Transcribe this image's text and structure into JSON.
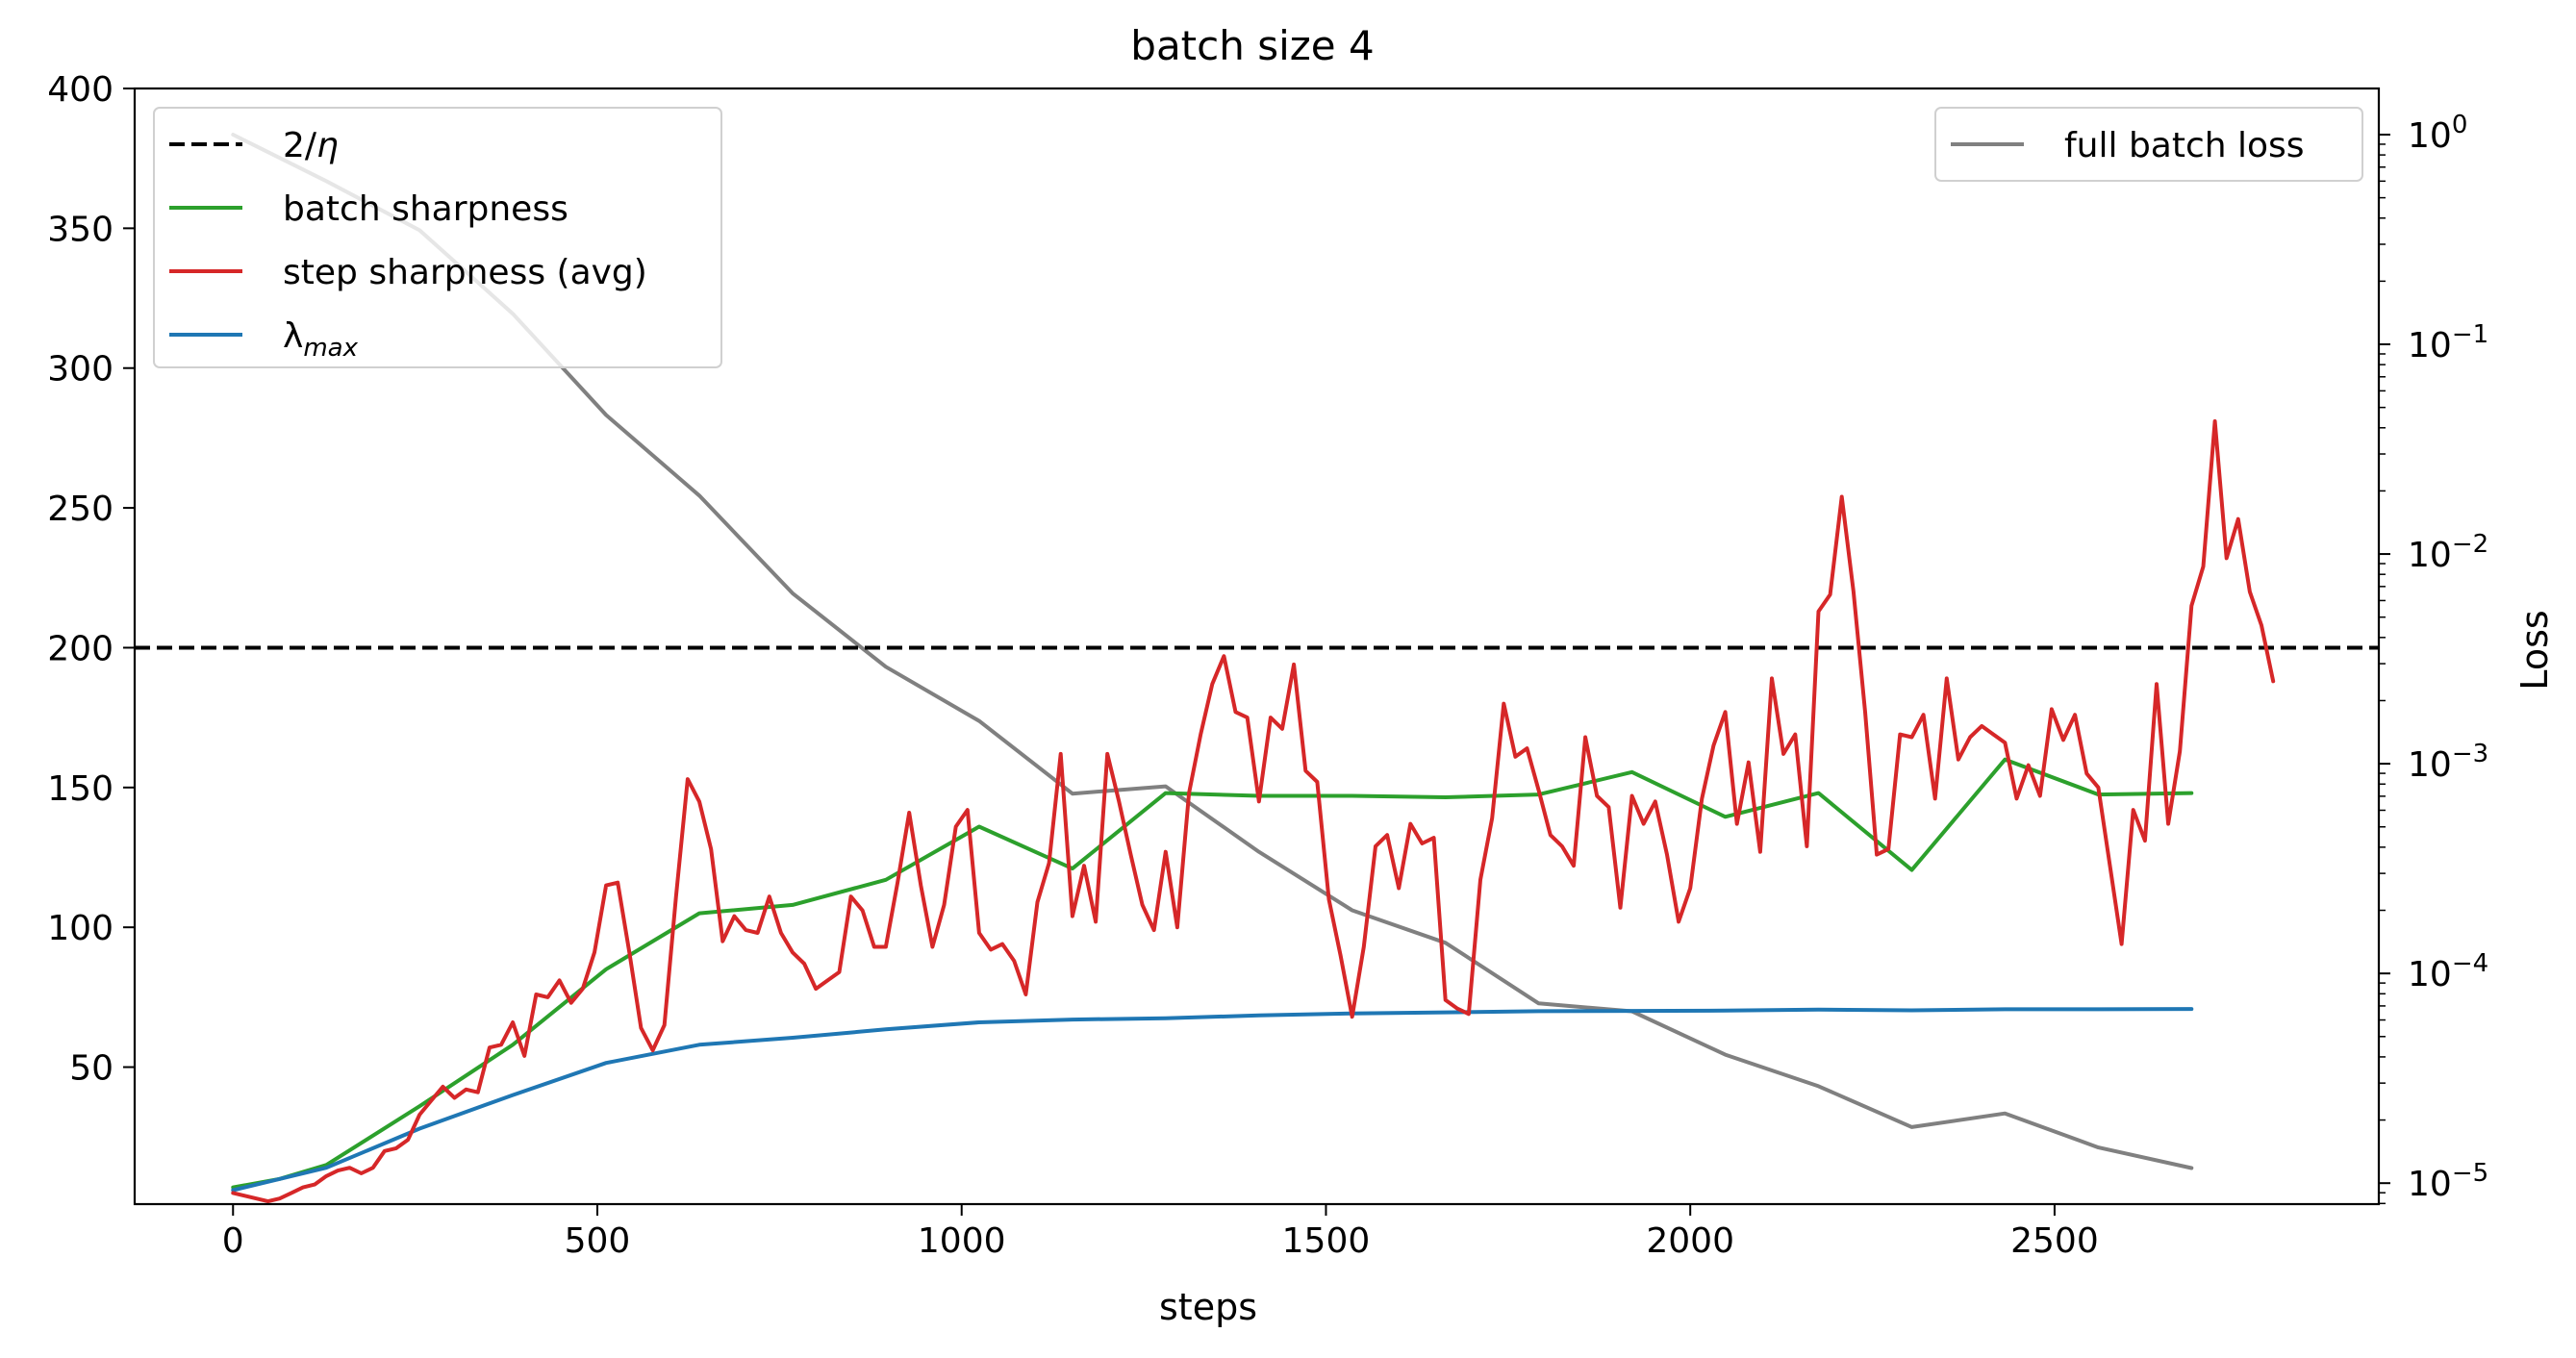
{
  "chart_data": {
    "type": "line",
    "title": "batch size 4",
    "xlabel": "steps",
    "ylabel": "",
    "ylabel_right": "Loss",
    "xlim": [
      -135,
      2945
    ],
    "ylim": [
      1,
      400
    ],
    "y2_scale": "log",
    "y2_exponent_range": [
      -5.1,
      0.22
    ],
    "grid": false,
    "x_ticks": [
      0,
      500,
      1000,
      1500,
      2000,
      2500
    ],
    "y_ticks": [
      50,
      100,
      150,
      200,
      250,
      300,
      350,
      400
    ],
    "y2_ticks": [
      {
        "base": "10",
        "exp": "0",
        "value": 1
      },
      {
        "base": "10",
        "exp": "−1",
        "value": 0.1
      },
      {
        "base": "10",
        "exp": "−2",
        "value": 0.01
      },
      {
        "base": "10",
        "exp": "−3",
        "value": 0.001
      },
      {
        "base": "10",
        "exp": "−4",
        "value": 0.0001
      },
      {
        "base": "10",
        "exp": "−5",
        "value": 1e-05
      }
    ],
    "legend_left": {
      "placement": "upper-left",
      "entries": [
        {
          "label": "2/",
          "label_italic": "η",
          "series": "two_over_eta"
        },
        {
          "label": "batch sharpness",
          "series": "batch_sharpness"
        },
        {
          "label": "step sharpness (avg)",
          "series": "step_sharpness"
        },
        {
          "label": "λ",
          "label_sub": "max",
          "series": "lambda_max"
        }
      ]
    },
    "legend_right": {
      "placement": "upper-right",
      "entries": [
        {
          "label": "full batch loss",
          "series": "full_batch_loss"
        }
      ]
    },
    "colors": {
      "two_over_eta": "#000000",
      "batch_sharpness": "#2ca02c",
      "step_sharpness": "#d62728",
      "lambda_max": "#1f77b4",
      "full_batch_loss": "#808080"
    },
    "series": [
      {
        "key": "two_over_eta",
        "axis": "left",
        "style": "dashed",
        "x": [
          -135,
          2945
        ],
        "y": [
          200,
          200
        ]
      },
      {
        "key": "batch_sharpness",
        "axis": "left",
        "x": [
          0,
          64,
          128,
          256,
          384,
          512,
          640,
          768,
          896,
          1024,
          1152,
          1280,
          1408,
          1536,
          1664,
          1792,
          1920,
          2048,
          2176,
          2304,
          2432,
          2560,
          2688
        ],
        "y": [
          7,
          10,
          15,
          36,
          58,
          85,
          105,
          108,
          117,
          136,
          121,
          148,
          147,
          147,
          146.5,
          147.5,
          155.5,
          139.5,
          148,
          120.5,
          160,
          147.5,
          148
        ]
      },
      {
        "key": "lambda_max",
        "axis": "left",
        "x": [
          0,
          128,
          256,
          384,
          512,
          640,
          768,
          896,
          1024,
          1152,
          1280,
          1408,
          1536,
          1664,
          1792,
          1920,
          2048,
          2176,
          2304,
          2432,
          2560,
          2688
        ],
        "y": [
          6,
          14,
          28,
          40,
          51.5,
          58,
          60.5,
          63.5,
          66,
          67,
          67.5,
          68.5,
          69.2,
          69.6,
          70,
          70.1,
          70.2,
          70.6,
          70.3,
          70.7,
          70.7,
          70.8
        ]
      },
      {
        "key": "full_batch_loss",
        "axis": "right",
        "x": [
          0,
          128,
          256,
          384,
          512,
          640,
          768,
          896,
          1024,
          1152,
          1280,
          1408,
          1536,
          1664,
          1792,
          1920,
          2048,
          2176,
          2304,
          2432,
          2560,
          2688
        ],
        "y": [
          1.0,
          0.6,
          0.35,
          0.14,
          0.046,
          0.019,
          0.0065,
          0.0029,
          0.0016,
          0.00072,
          0.00078,
          0.00038,
          0.0002,
          0.00014,
          7.2e-05,
          6.6e-05,
          4.1e-05,
          2.9e-05,
          1.85e-05,
          2.15e-05,
          1.48e-05,
          1.18e-05
        ]
      },
      {
        "key": "step_sharpness",
        "axis": "left",
        "x": [
          0,
          16,
          32,
          48,
          64,
          80,
          96,
          112,
          128,
          144,
          160,
          176,
          192,
          208,
          224,
          240,
          256,
          272,
          288,
          304,
          320,
          336,
          352,
          368,
          384,
          400,
          416,
          432,
          448,
          464,
          480,
          496,
          512,
          528,
          544,
          560,
          576,
          592,
          608,
          624,
          640,
          656,
          672,
          688,
          704,
          720,
          736,
          752,
          768,
          784,
          800,
          816,
          832,
          848,
          864,
          880,
          896,
          912,
          928,
          944,
          960,
          976,
          992,
          1008,
          1024,
          1040,
          1056,
          1072,
          1088,
          1104,
          1120,
          1136,
          1152,
          1168,
          1184,
          1200,
          1216,
          1232,
          1248,
          1264,
          1280,
          1296,
          1312,
          1328,
          1344,
          1360,
          1376,
          1392,
          1408,
          1424,
          1440,
          1456,
          1472,
          1488,
          1504,
          1520,
          1536,
          1552,
          1568,
          1584,
          1600,
          1616,
          1632,
          1648,
          1664,
          1680,
          1696,
          1712,
          1728,
          1744,
          1760,
          1776,
          1792,
          1808,
          1824,
          1840,
          1856,
          1872,
          1888,
          1904,
          1920,
          1936,
          1952,
          1968,
          1984,
          2000,
          2016,
          2032,
          2048,
          2064,
          2080,
          2096,
          2112,
          2128,
          2144,
          2160,
          2176,
          2192,
          2208,
          2224,
          2240,
          2256,
          2272,
          2288,
          2304,
          2320,
          2336,
          2352,
          2368,
          2384,
          2400,
          2416,
          2432,
          2448,
          2464,
          2480,
          2496,
          2512,
          2528,
          2544,
          2560,
          2576,
          2592,
          2608,
          2624,
          2640,
          2656,
          2672,
          2688,
          2704,
          2720,
          2736,
          2752,
          2768,
          2784,
          2800
        ],
        "y": [
          5,
          4,
          3,
          2,
          3,
          5,
          7,
          8,
          11,
          13,
          14,
          12,
          14,
          20,
          21,
          24,
          33,
          38,
          43,
          39,
          42,
          41,
          57,
          58,
          66,
          54,
          76,
          75,
          81,
          73,
          78,
          91,
          115,
          116,
          91,
          64,
          56,
          65,
          111,
          153,
          145,
          128,
          95,
          104,
          99,
          98,
          111,
          98,
          91,
          87,
          78,
          81,
          84,
          111,
          106,
          93,
          93,
          116,
          141,
          115,
          93,
          108,
          136,
          142,
          98,
          92,
          94,
          88,
          76,
          109,
          123,
          162,
          104,
          122,
          102,
          162,
          145,
          126,
          108,
          99,
          127,
          100,
          148,
          169,
          187,
          197,
          177,
          175,
          145,
          175,
          171,
          194,
          156,
          152,
          110,
          90,
          68,
          93,
          129,
          133,
          114,
          137,
          130,
          132,
          74,
          71,
          69,
          117,
          139,
          180,
          161,
          164,
          149,
          133,
          129,
          122,
          168,
          147,
          143,
          107,
          147,
          137,
          145,
          126,
          102,
          114,
          146,
          165,
          177,
          137,
          159,
          127,
          189,
          162,
          169,
          129,
          213,
          219,
          254,
          220,
          177,
          126,
          128,
          169,
          168,
          176,
          146,
          189,
          160,
          168,
          172,
          169,
          166,
          146,
          158,
          147,
          178,
          167,
          176,
          155,
          150,
          122,
          94,
          142,
          131,
          187,
          137,
          163,
          215,
          229,
          281,
          232,
          246,
          220,
          208,
          188
        ]
      }
    ]
  }
}
